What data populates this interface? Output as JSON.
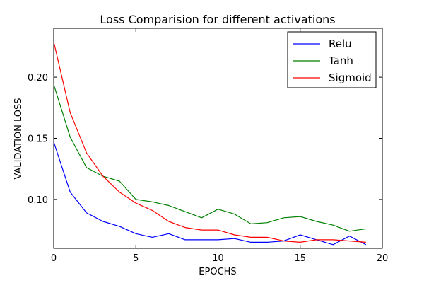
{
  "chart_data": {
    "type": "line",
    "title": "Loss Comparision for different activations",
    "xlabel": "EPOCHS",
    "ylabel": "VALIDATION LOSS",
    "xlim": [
      0,
      20
    ],
    "ylim": [
      0.06,
      0.24
    ],
    "xticks": [
      "0",
      "5",
      "10",
      "15",
      "20"
    ],
    "xtick_values": [
      0,
      5,
      10,
      15,
      20
    ],
    "yticks": [
      "0.10",
      "0.15",
      "0.20"
    ],
    "ytick_values": [
      0.1,
      0.15,
      0.2
    ],
    "grid": false,
    "legend_position": "top-right",
    "x": [
      0,
      1,
      2,
      3,
      4,
      5,
      6,
      7,
      8,
      9,
      10,
      11,
      12,
      13,
      14,
      15,
      16,
      17,
      18,
      19
    ],
    "series": [
      {
        "name": "Relu",
        "color": "#0000ff",
        "values": [
          0.147,
          0.106,
          0.089,
          0.082,
          0.078,
          0.072,
          0.069,
          0.072,
          0.067,
          0.067,
          0.067,
          0.068,
          0.065,
          0.065,
          0.066,
          0.071,
          0.067,
          0.063,
          0.07,
          0.063
        ]
      },
      {
        "name": "Tanh",
        "color": "#008000",
        "values": [
          0.194,
          0.151,
          0.126,
          0.119,
          0.115,
          0.1,
          0.098,
          0.095,
          0.09,
          0.085,
          0.092,
          0.088,
          0.08,
          0.081,
          0.085,
          0.086,
          0.082,
          0.079,
          0.074,
          0.076
        ]
      },
      {
        "name": "Sigmoid",
        "color": "#ff0000",
        "values": [
          0.229,
          0.171,
          0.138,
          0.119,
          0.106,
          0.097,
          0.091,
          0.082,
          0.077,
          0.075,
          0.075,
          0.071,
          0.069,
          0.069,
          0.066,
          0.065,
          0.067,
          0.067,
          0.066,
          0.065
        ]
      }
    ]
  }
}
